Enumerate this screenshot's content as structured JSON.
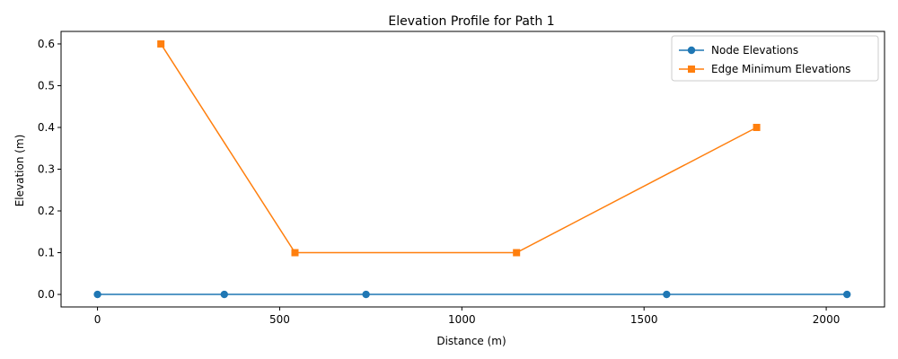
{
  "chart_data": {
    "type": "line",
    "title": "Elevation Profile for Path 1",
    "xlabel": "Distance (m)",
    "ylabel": "Elevation (m)",
    "xlim": [
      -100,
      2160
    ],
    "ylim": [
      -0.03,
      0.63
    ],
    "xticks": [
      0,
      500,
      1000,
      1500,
      2000
    ],
    "xtick_labels": [
      "0",
      "500",
      "1000",
      "1500",
      "2000"
    ],
    "yticks": [
      0.0,
      0.1,
      0.2,
      0.3,
      0.4,
      0.5,
      0.6
    ],
    "ytick_labels": [
      "0.0",
      "0.1",
      "0.2",
      "0.3",
      "0.4",
      "0.5",
      "0.6"
    ],
    "grid": false,
    "legend_position": "top-right",
    "series": [
      {
        "name": "Node Elevations",
        "color": "#1f77b4",
        "marker": "circle",
        "x": [
          0,
          348,
          737,
          1562,
          2057
        ],
        "y": [
          0,
          0,
          0,
          0,
          0
        ]
      },
      {
        "name": "Edge Minimum Elevations",
        "color": "#ff7f0e",
        "marker": "square",
        "x": [
          174,
          542,
          1150,
          1809
        ],
        "y": [
          0.6,
          0.1,
          0.1,
          0.4
        ]
      }
    ]
  }
}
